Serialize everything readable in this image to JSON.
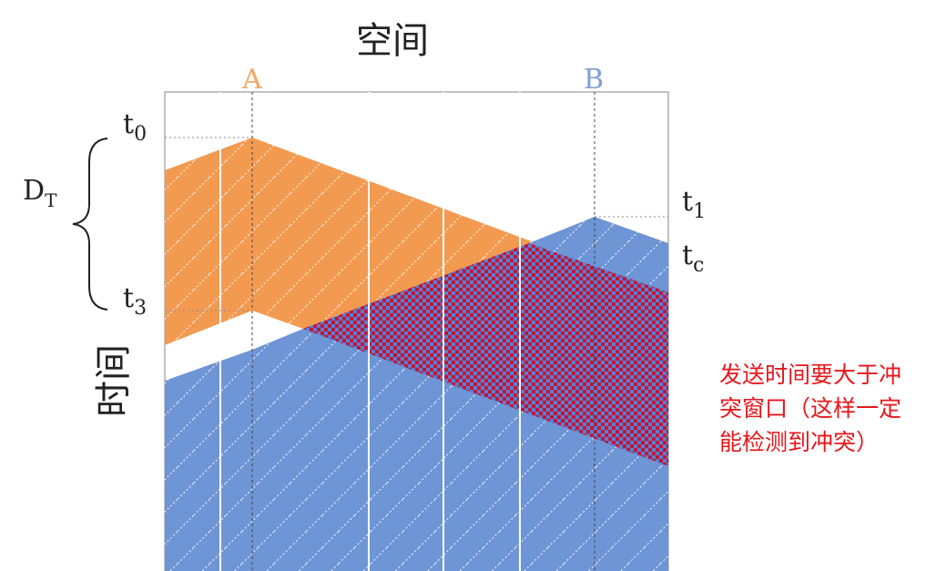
{
  "axes": {
    "space_label": "空间",
    "time_label": "时间"
  },
  "stations": {
    "a": {
      "label": "A",
      "color": "#f4a460"
    },
    "b": {
      "label": "B",
      "color": "#7c9fd8"
    }
  },
  "time_marks": {
    "t0": {
      "base": "t",
      "sub": "0"
    },
    "t1": {
      "base": "t",
      "sub": "1"
    },
    "tc": {
      "base": "t",
      "sub": "c"
    },
    "t3": {
      "base": "t",
      "sub": "3"
    }
  },
  "duration": {
    "base": "D",
    "sub": "T"
  },
  "note": "发送时间要大于冲突窗口（这样一定能检测到冲突）",
  "colors": {
    "orange_signal": "#f39a51",
    "blue_signal": "#6e95d6",
    "collision_red": "#c0163a",
    "collision_check": "#5a7ed0",
    "note_text": "#e8161c"
  }
}
